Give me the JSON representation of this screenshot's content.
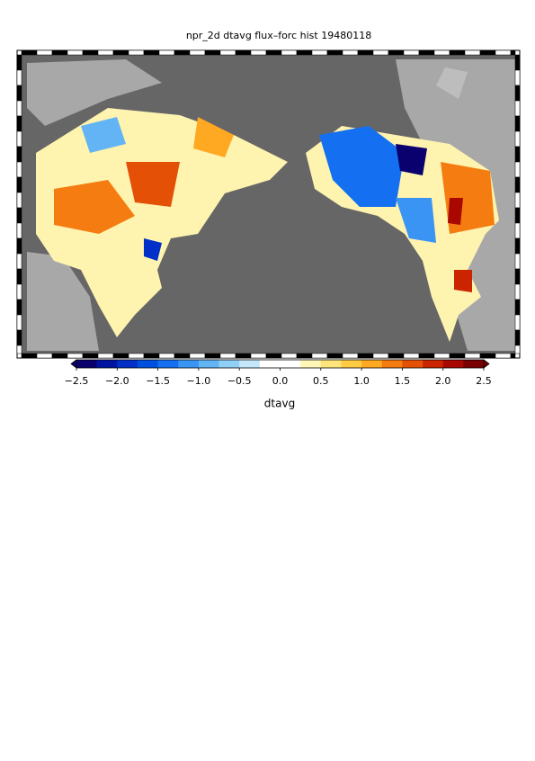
{
  "title": "npr_2d dtavg flux–forc hist 19480118",
  "colorbar": {
    "label": "dtavg",
    "range": [
      -2.5,
      2.5
    ],
    "ticks": [
      {
        "value": -2.5,
        "label": "−2.5"
      },
      {
        "value": -2.0,
        "label": "−2.0"
      },
      {
        "value": -1.5,
        "label": "−1.5"
      },
      {
        "value": -1.0,
        "label": "−1.0"
      },
      {
        "value": -0.5,
        "label": "−0.5"
      },
      {
        "value": 0,
        "label": "0.0"
      },
      0.5,
      {
        "value": 1,
        "label": "1.0"
      },
      1.5,
      {
        "value": 2,
        "label": "2.0"
      },
      2.5
    ],
    "colors": [
      "#0a006e",
      "#0014a0",
      "#0030c8",
      "#0050e0",
      "#1470f0",
      "#3a94f4",
      "#62b4f4",
      "#90d0f6",
      "#c4e8fa",
      "#ffffff",
      "#ffffff",
      "#fff6b8",
      "#ffe47c",
      "#ffcc44",
      "#ffa822",
      "#f47c10",
      "#e45006",
      "#cc2400",
      "#a80800",
      "#780000"
    ]
  }
}
